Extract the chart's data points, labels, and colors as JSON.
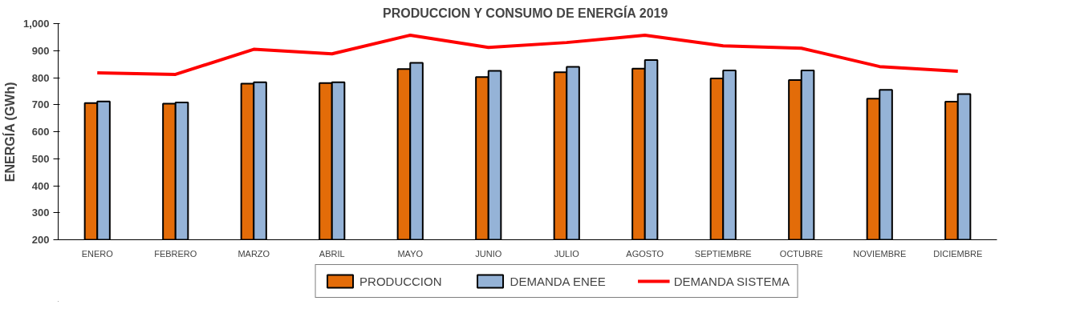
{
  "chart_data": {
    "type": "bar",
    "title": "PRODUCCION Y CONSUMO DE ENERGÍA  2019",
    "ylabel": "ENERGÍA (GWh)",
    "categories": [
      "ENERO",
      "FEBRERO",
      "MARZO",
      "ABRIL",
      "MAYO",
      "JUNIO",
      "JULIO",
      "AGOSTO",
      "SEPTIEMBRE",
      "OCTUBRE",
      "NOVIEMBRE",
      "DICIEMBRE"
    ],
    "series": [
      {
        "name": "PRODUCCION",
        "color": "#e36c09",
        "values": [
          706,
          704,
          778,
          780,
          832,
          802,
          820,
          833,
          797,
          791,
          722,
          711
        ]
      },
      {
        "name": "DEMANDA ENEE",
        "color": "#95b3d7",
        "values": [
          712,
          708,
          783,
          783,
          855,
          825,
          840,
          865,
          827,
          827,
          755,
          739
        ]
      },
      {
        "name": "DEMANDA SISTEMA",
        "type": "line",
        "color": "#ff0000",
        "values": [
          818,
          812,
          905,
          888,
          957,
          912,
          930,
          957,
          918,
          909,
          841,
          824
        ]
      }
    ],
    "ylim": [
      200,
      1000
    ],
    "yticks": [
      200,
      300,
      400,
      500,
      600,
      700,
      800,
      900,
      {
        "value": 1000,
        "label": "1,000"
      }
    ],
    "grid": false,
    "legend": "bottom",
    "marker": "none",
    "line_style": "solid"
  }
}
